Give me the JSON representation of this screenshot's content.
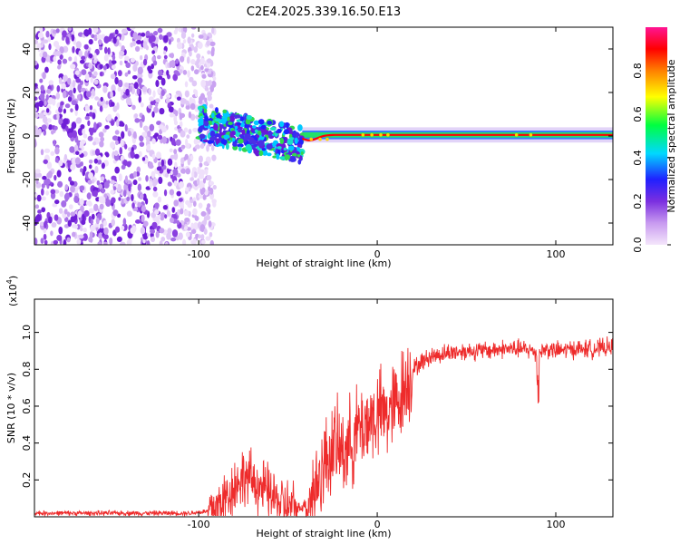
{
  "chart_data": [
    {
      "type": "heatmap",
      "title": "C2E4.2025.339.16.50.E13",
      "xlabel": "Height of straight line (km)",
      "ylabel": "Frequency (Hz)",
      "xlim": [
        -192,
        132
      ],
      "ylim": [
        -50,
        50
      ],
      "xticks": [
        -100,
        0,
        100
      ],
      "yticks": [
        -40,
        -20,
        0,
        20,
        40
      ],
      "colorbar": {
        "label": "Normalized spectral amplitude",
        "range": [
          0,
          1
        ],
        "ticks": [
          "0.0",
          "0.2",
          "0.4",
          "0.6",
          "0.8"
        ],
        "tick_values": [
          0.0,
          0.2,
          0.4,
          0.6,
          0.8
        ],
        "colormap": [
          "#f4e6fb",
          "#8a2be2",
          "#2020ff",
          "#00e0ff",
          "#00ff40",
          "#ffff00",
          "#ff8000",
          "#ff0000",
          "#ff1493"
        ]
      },
      "features": {
        "noise_region_x": [
          -192,
          -95
        ],
        "transition_region_x": [
          -100,
          -42
        ],
        "line_start_x": -42,
        "line_freq_hz": 0.5,
        "line_color": "#ff0000"
      }
    },
    {
      "type": "line",
      "xlabel": "Height of straight line (km)",
      "ylabel": "SNR (10 * v/v)",
      "scale_label": "(x10",
      "scale_exponent": "4",
      "xlim": [
        -192,
        132
      ],
      "ylim": [
        0,
        1.18
      ],
      "xticks": [
        -100,
        0,
        100
      ],
      "yticks": [
        0.2,
        0.4,
        0.6,
        0.8,
        1.0
      ],
      "ytick_labels": [
        "0.2",
        "0.4",
        "0.6",
        "0.8",
        "1.0"
      ],
      "series": [
        {
          "name": "SNR",
          "color": "#ee2b2b",
          "x": [
            -192,
            -150,
            -105,
            -95,
            -90,
            -85,
            -80,
            -75,
            -70,
            -65,
            -60,
            -55,
            -50,
            -45,
            -40,
            -35,
            -30,
            -25,
            -20,
            -15,
            -10,
            -5,
            0,
            5,
            10,
            15,
            20,
            25,
            30,
            40,
            50,
            60,
            70,
            80,
            88,
            90,
            92,
            95,
            100,
            110,
            120,
            132
          ],
          "y": [
            0.02,
            0.02,
            0.02,
            0.03,
            0.05,
            0.1,
            0.17,
            0.22,
            0.2,
            0.16,
            0.12,
            0.08,
            0.05,
            0.04,
            0.07,
            0.15,
            0.28,
            0.38,
            0.36,
            0.4,
            0.48,
            0.52,
            0.55,
            0.56,
            0.6,
            0.7,
            0.8,
            0.84,
            0.87,
            0.89,
            0.9,
            0.9,
            0.91,
            0.91,
            0.9,
            0.86,
            0.9,
            0.91,
            0.9,
            0.91,
            0.91,
            0.92
          ]
        }
      ]
    }
  ]
}
